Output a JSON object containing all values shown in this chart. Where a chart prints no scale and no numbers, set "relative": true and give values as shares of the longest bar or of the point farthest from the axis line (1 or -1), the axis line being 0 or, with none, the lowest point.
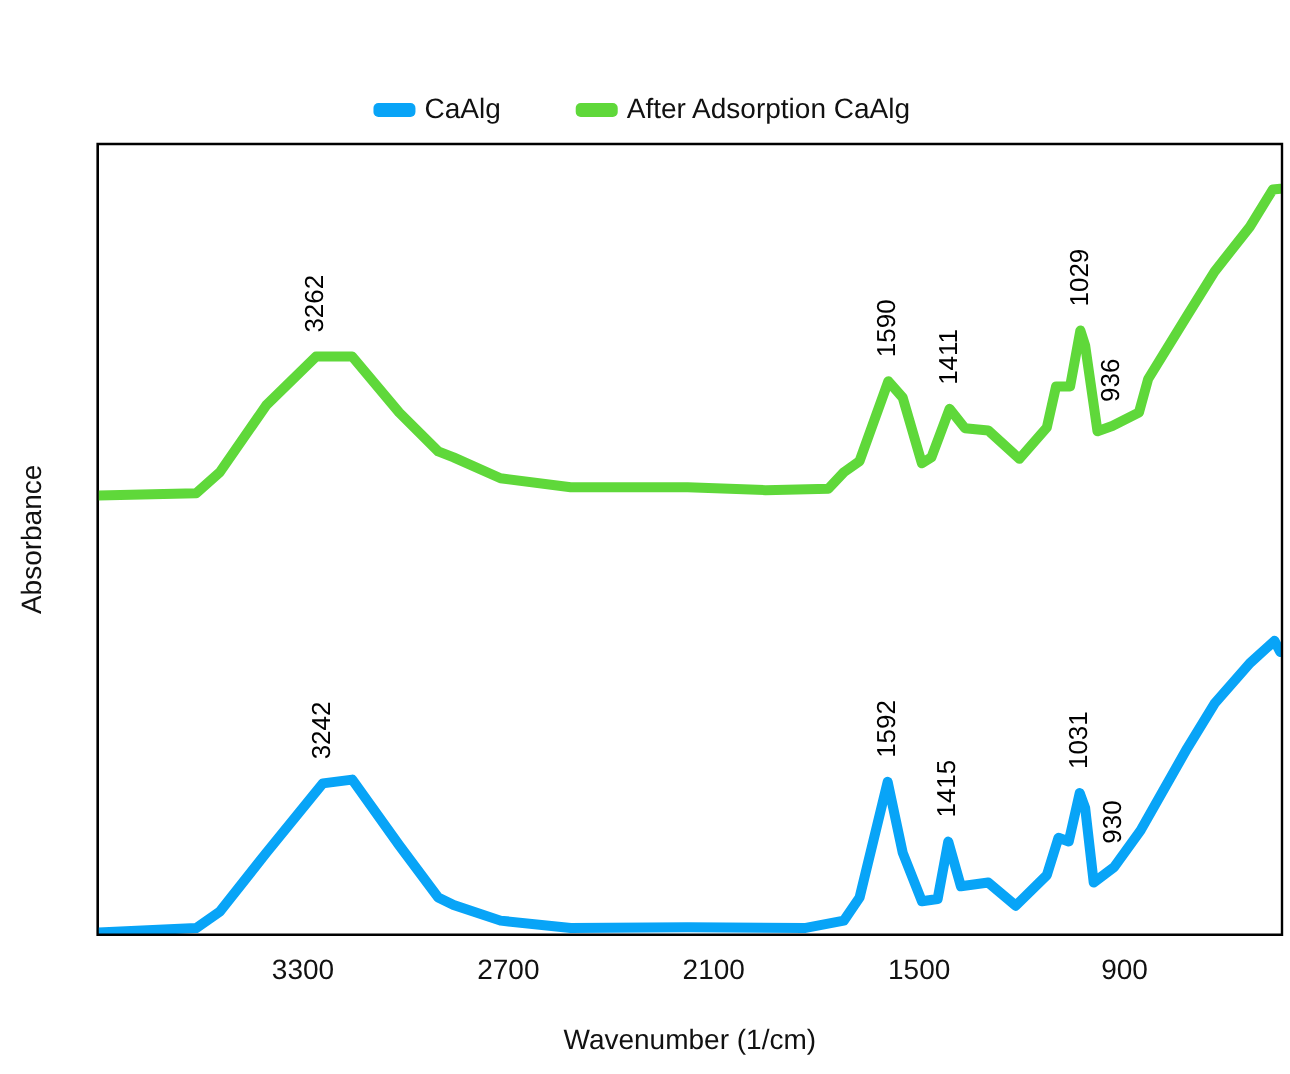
{
  "chart_data": {
    "type": "line",
    "relative": true,
    "xlabel": "Wavenumber (1/cm)",
    "ylabel": "Absorbance",
    "xlim": [
      3900,
      440
    ],
    "xticks": [
      3300,
      2700,
      2100,
      1500,
      900
    ],
    "grid": false,
    "legend": "top",
    "marker": "none",
    "line_style": "solid",
    "series": [
      {
        "name": "CaAlg",
        "color": "#08a4f7",
        "x": [
          3897,
          3612,
          3543,
          3407,
          3242,
          3156,
          3019,
          2905,
          2860,
          2723,
          2518,
          2176,
          1835,
          1720,
          1674,
          1592,
          1548,
          1492,
          1446,
          1415,
          1378,
          1298,
          1218,
          1127,
          1093,
          1063,
          1031,
          1015,
          990,
          930,
          853,
          717,
          637,
          534,
          462,
          445
        ],
        "values": [
          0.003,
          0.009,
          0.031,
          0.11,
          0.203,
          0.208,
          0.12,
          0.05,
          0.04,
          0.019,
          0.009,
          0.01,
          0.009,
          0.019,
          0.05,
          0.205,
          0.11,
          0.045,
          0.048,
          0.125,
          0.065,
          0.07,
          0.039,
          0.08,
          0.13,
          0.125,
          0.19,
          0.17,
          0.07,
          0.091,
          0.14,
          0.25,
          0.31,
          0.364,
          0.394,
          0.379
        ]
      },
      {
        "name": "After Adsorption CaAlg",
        "color": "#5fd83a",
        "x": [
          3897,
          3612,
          3543,
          3407,
          3262,
          3156,
          3019,
          2905,
          2860,
          2723,
          2518,
          2176,
          1949,
          1765,
          1720,
          1674,
          1590,
          1548,
          1492,
          1464,
          1411,
          1366,
          1298,
          1207,
          1127,
          1100,
          1059,
          1029,
          1015,
          979,
          936,
          858,
          831,
          717,
          637,
          534,
          467,
          445
        ],
        "values": [
          0.589,
          0.592,
          0.62,
          0.71,
          0.775,
          0.775,
          0.7,
          0.648,
          0.64,
          0.612,
          0.6,
          0.6,
          0.596,
          0.598,
          0.62,
          0.635,
          0.742,
          0.72,
          0.632,
          0.64,
          0.705,
          0.679,
          0.676,
          0.638,
          0.68,
          0.735,
          0.735,
          0.81,
          0.79,
          0.675,
          0.682,
          0.7,
          0.745,
          0.83,
          0.889,
          0.949,
          0.999,
          1.0
        ]
      }
    ],
    "annotations": [
      {
        "text": "3262",
        "x": 3262,
        "y": 0.775
      },
      {
        "text": "1590",
        "x": 1590,
        "y": 0.742
      },
      {
        "text": "1411",
        "x": 1411,
        "y": 0.705
      },
      {
        "text": "1029",
        "x": 1029,
        "y": 0.81
      },
      {
        "text": "936",
        "x": 936,
        "y": 0.682
      },
      {
        "text": "3242",
        "x": 3242,
        "y": 0.203
      },
      {
        "text": "1592",
        "x": 1592,
        "y": 0.205
      },
      {
        "text": "1415",
        "x": 1415,
        "y": 0.125
      },
      {
        "text": "1031",
        "x": 1031,
        "y": 0.19
      },
      {
        "text": "930",
        "x": 930,
        "y": 0.09
      }
    ]
  }
}
